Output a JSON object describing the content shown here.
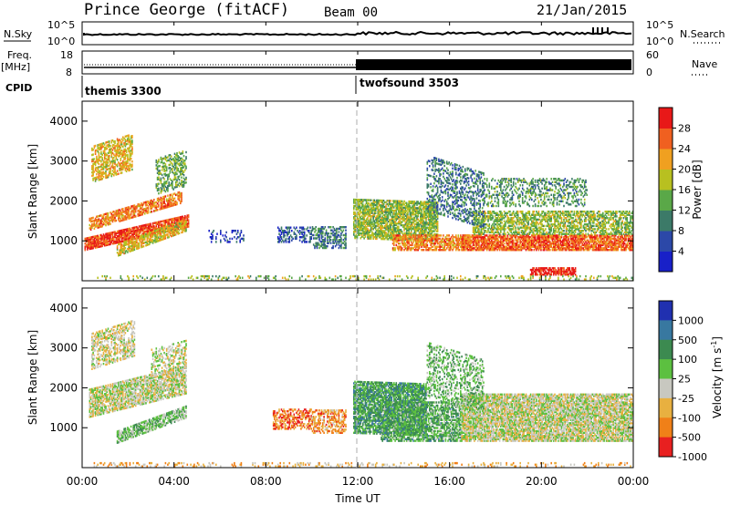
{
  "header": {
    "title": "Prince George (fitACF)",
    "beam": "Beam 00",
    "date": "21/Jan/2015"
  },
  "chart_data": {
    "type": "heatmap",
    "time_ticks": [
      "00:00",
      "04:00",
      "08:00",
      "12:00",
      "16:00",
      "20:00",
      "00:00"
    ],
    "xlabel": "Time UT",
    "mode_change_time": "12:00",
    "top_panels": {
      "nsky": {
        "label": "N.Sky",
        "right_label": "N.Search",
        "left_ticks": [
          "10^5",
          "10^0"
        ],
        "right_ticks": [
          "10^5",
          "10^0"
        ]
      },
      "freq": {
        "label_line1": "Freq.",
        "label_line2": "[MHz]",
        "left_ticks": [
          "18",
          "8"
        ],
        "right_ticks": [
          "60",
          "0"
        ],
        "right_label": "Nave"
      },
      "cpid": {
        "label": "CPID",
        "modes": [
          {
            "name": "themis 3300",
            "start": "00:00",
            "end": "12:00"
          },
          {
            "name": "twofsound 3503",
            "start": "12:00",
            "end": "24:00"
          }
        ]
      }
    },
    "panels": [
      {
        "name": "power",
        "ylabel": "Slant Range [km]",
        "y_ticks": [
          "1000",
          "2000",
          "3000",
          "4000"
        ],
        "ylim": [
          0,
          4500
        ],
        "colorbar_label": "Power [dB]",
        "colorbar_ticks": [
          "4",
          "8",
          "12",
          "16",
          "20",
          "24",
          "28"
        ],
        "colors": [
          "#1820c8",
          "#2c48a8",
          "#3c7a68",
          "#5aa848",
          "#b8c020",
          "#f0a020",
          "#f06020",
          "#e81818"
        ]
      },
      {
        "name": "velocity",
        "ylabel": "Slant Range [km]",
        "y_ticks": [
          "1000",
          "2000",
          "3000",
          "4000"
        ],
        "ylim": [
          0,
          4500
        ],
        "colorbar_label": "Velocity [m s",
        "colorbar_label_sup": "-1",
        "colorbar_label_end": "]",
        "colorbar_ticks": [
          "1000",
          "500",
          "100",
          "25",
          "-25",
          "-100",
          "-500",
          "-1000"
        ],
        "colors": [
          "#2030b0",
          "#3878a0",
          "#3c8a50",
          "#5cc040",
          "#c8c8c0",
          "#e8b040",
          "#f08018",
          "#e82020"
        ]
      }
    ]
  }
}
